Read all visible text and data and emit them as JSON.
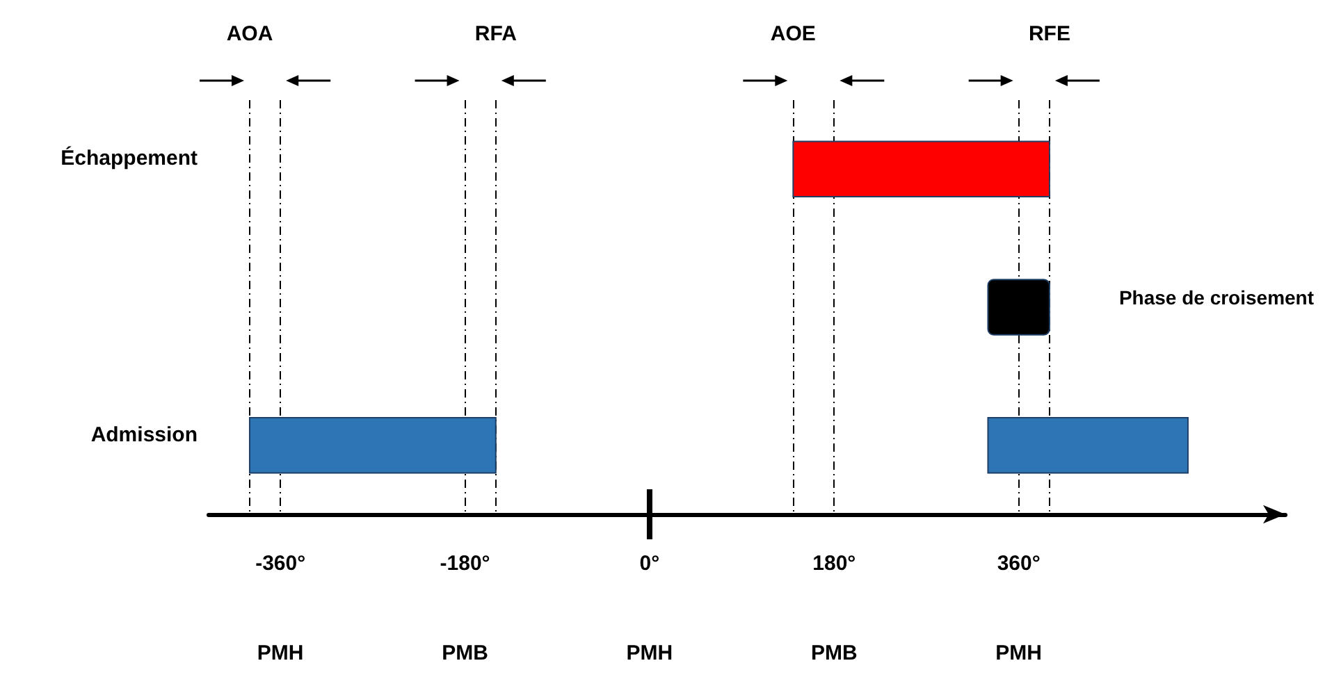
{
  "chart_data": {
    "type": "bar",
    "orientation": "horizontal",
    "categories": [
      "Échappement",
      null,
      "Admission"
    ],
    "series": [
      {
        "color": "#ff0000",
        "values": [
          250,
          null,
          null
        ],
        "base": [
          140,
          null,
          null
        ]
      },
      {
        "color": "#000000",
        "values": [
          null,
          60,
          null
        ],
        "base": [
          null,
          330,
          null
        ]
      },
      {
        "color": "#2e75b6",
        "values": [
          null,
          null,
          240
        ],
        "base": [
          null,
          null,
          -390
        ]
      },
      {
        "color": "#2e75b6",
        "values": [
          null,
          null,
          195
        ],
        "base": [
          null,
          null,
          330
        ]
      }
    ],
    "xlim": [
      -430,
      620
    ],
    "xticks": [
      {
        "value": -360,
        "label": "-360°"
      },
      {
        "value": -180,
        "label": "-180°"
      },
      {
        "value": 0,
        "label": "0°"
      },
      {
        "value": 180,
        "label": "180°"
      },
      {
        "value": 360,
        "label": "360°"
      }
    ],
    "ref_lines": [
      {
        "axis": "x",
        "value": -390,
        "label": "AOA",
        "line_style": "dashed"
      },
      {
        "axis": "x",
        "value": -360,
        "label": null,
        "line_style": "dashed"
      },
      {
        "axis": "x",
        "value": -180,
        "label": null,
        "line_style": "dashed"
      },
      {
        "axis": "x",
        "value": -150,
        "label": "RFA",
        "line_style": "dashed"
      },
      {
        "axis": "x",
        "value": 140,
        "label": "AOE",
        "line_style": "dashed"
      },
      {
        "axis": "x",
        "value": 180,
        "label": null,
        "line_style": "dashed"
      },
      {
        "axis": "x",
        "value": 360,
        "label": null,
        "line_style": "dashed"
      },
      {
        "axis": "x",
        "value": 390,
        "label": "RFE",
        "line_style": "dashed"
      }
    ],
    "annotations": [
      "Phase de croisement",
      "PMH",
      "PMB",
      "PMH",
      "PMB",
      "PMH"
    ],
    "grid": false
  }
}
